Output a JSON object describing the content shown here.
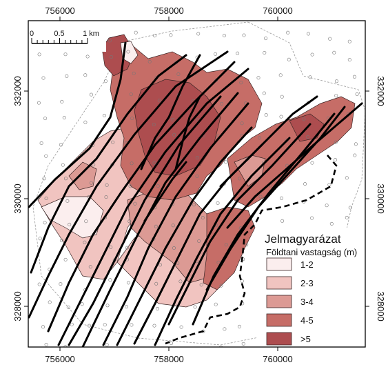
{
  "map": {
    "x_ticks": [
      {
        "label": "756000",
        "value": 756000
      },
      {
        "label": "758000",
        "value": 758000
      },
      {
        "label": "760000",
        "value": 760000
      }
    ],
    "y_ticks": [
      {
        "label": "332000",
        "value": 332000
      },
      {
        "label": "330000",
        "value": 330000
      },
      {
        "label": "328000",
        "value": 328000
      }
    ],
    "scalebar": {
      "labels": [
        "0",
        "0.5",
        "1 km"
      ]
    },
    "legend": {
      "title": "Jelmagyarázat",
      "subtitle": "Földtani vastagság (m)",
      "items": [
        {
          "label": "1-2",
          "color": "#fbeeee"
        },
        {
          "label": "2-3",
          "color": "#f1c4c0"
        },
        {
          "label": "3-4",
          "color": "#dc9a94"
        },
        {
          "label": "4-5",
          "color": "#c66d67"
        },
        {
          "label": ">5",
          "color": "#ad4d4f"
        }
      ]
    }
  }
}
